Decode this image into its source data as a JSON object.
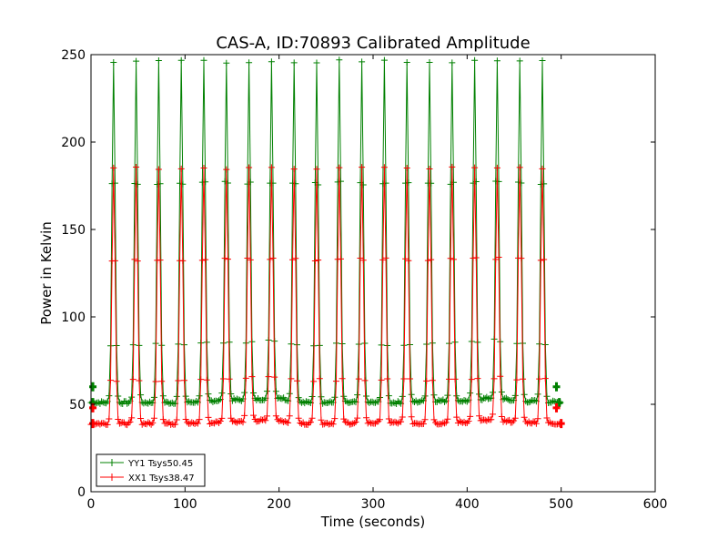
{
  "chart_data": {
    "type": "line",
    "title": "CAS-A, ID:70893 Calibrated Amplitude",
    "xlabel": "Time (seconds)",
    "ylabel": "Power in Kelvin",
    "xlim": [
      0,
      600
    ],
    "ylim": [
      0,
      250
    ],
    "xticks": [
      0,
      100,
      200,
      300,
      400,
      500,
      600
    ],
    "yticks": [
      0,
      50,
      100,
      150,
      200,
      250
    ],
    "grid": false,
    "legend_position": "lower-left",
    "pulse_times": [
      24,
      48,
      72,
      96,
      120,
      144,
      168,
      192,
      216,
      240,
      264,
      288,
      312,
      336,
      360,
      384,
      408,
      432,
      456,
      480
    ],
    "series": [
      {
        "name": "YY1 Tsys50.45",
        "color": "#008000",
        "marker": "+",
        "baseline": [
          [
            0,
            51
          ],
          [
            100,
            51
          ],
          [
            140,
            52.5
          ],
          [
            170,
            52.5
          ],
          [
            200,
            54
          ],
          [
            220,
            51
          ],
          [
            330,
            51
          ],
          [
            360,
            52
          ],
          [
            400,
            52
          ],
          [
            430,
            54
          ],
          [
            450,
            52
          ],
          [
            480,
            51.5
          ],
          [
            500,
            51
          ]
        ],
        "pulse_peaks": [
          246,
          246,
          246,
          246,
          246,
          246,
          246,
          246,
          246,
          246,
          247,
          246,
          246,
          246,
          246,
          246,
          246,
          246,
          246,
          246
        ],
        "end_points": [
          [
            2,
            60
          ],
          [
            2,
            51
          ],
          [
            495,
            60
          ],
          [
            498,
            51
          ]
        ],
        "x_range": [
          0,
          500
        ]
      },
      {
        "name": "XX1 Tsys38.47",
        "color": "#ff0000",
        "marker": "+",
        "baseline": [
          [
            0,
            39
          ],
          [
            120,
            39
          ],
          [
            140,
            40
          ],
          [
            170,
            40.5
          ],
          [
            200,
            41
          ],
          [
            220,
            39
          ],
          [
            330,
            39.5
          ],
          [
            360,
            39
          ],
          [
            400,
            40
          ],
          [
            430,
            41
          ],
          [
            450,
            40
          ],
          [
            480,
            39.5
          ],
          [
            500,
            39
          ]
        ],
        "pulse_peaks": [
          185,
          185,
          185,
          185,
          185,
          185,
          185,
          185,
          185,
          185,
          185,
          185,
          185,
          185,
          185,
          185,
          185,
          185,
          185,
          185
        ],
        "end_points": [
          [
            2,
            48
          ],
          [
            2,
            39
          ],
          [
            495,
            48
          ],
          [
            500,
            39
          ]
        ],
        "x_range": [
          0,
          500
        ]
      }
    ]
  }
}
